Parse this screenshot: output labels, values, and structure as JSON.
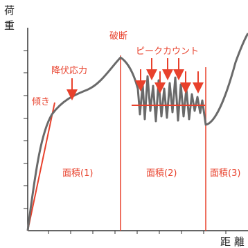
{
  "axes": {
    "y_label_line1": "荷",
    "y_label_line2": "重",
    "x_label": "距 離"
  },
  "annotations": {
    "slope": "傾き",
    "yield": "降伏応力",
    "break": "破断",
    "peak_count": "ピークカウント",
    "area1": "面積(1)",
    "area2": "面積(2)",
    "area3": "面積(3)"
  },
  "colors": {
    "axis": "#333333",
    "curve": "#6a6a6a",
    "accent": "#e8412c"
  }
}
